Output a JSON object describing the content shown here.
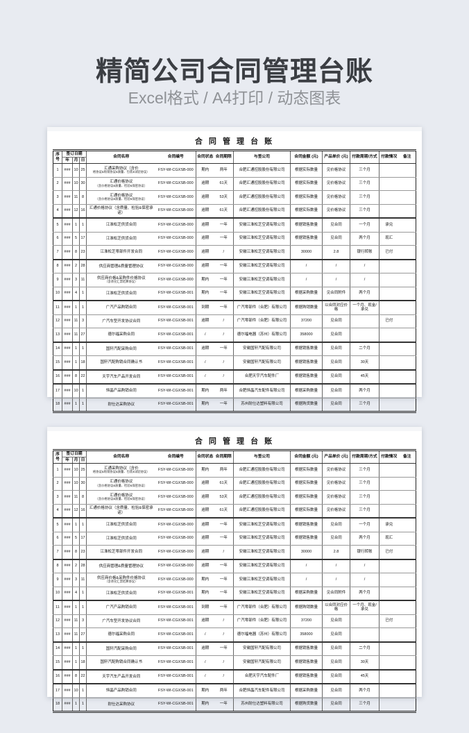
{
  "page": {
    "title": "精简公司合同管理台账",
    "subtitle": "Excel格式 / A4打印 / 动态图表"
  },
  "ledger": {
    "sheet_title": "合 同 管 理 台 账",
    "headers": {
      "no": "序号",
      "sign_date": "签订日期",
      "year": "年",
      "month": "月",
      "day": "日",
      "name": "合同名称",
      "number": "合同编号",
      "status": "合同状态",
      "period": "合同期限",
      "company": "与签公司",
      "amount": "合同金额 (元)",
      "price": "产品单价 (元)",
      "cycle": "付款周期/方式",
      "payment": "付款情况",
      "note": "备注"
    },
    "rows": [
      {
        "no": "1",
        "year": "###",
        "month": "10",
        "day": "25",
        "name": "汇通采购协议（含价",
        "name2": "格协议&购销协议&质量、包装&试验协议）",
        "number": "FSY-WI-CGXSB-000",
        "status": "期内",
        "period": "两年",
        "company": "合肥汇通控股股份有限公司",
        "amount": "根据实际数量",
        "price": "见价格协议",
        "cycle": "三个月",
        "payment": "",
        "note": "",
        "group_end": false
      },
      {
        "no": "2",
        "year": "###",
        "month": "10",
        "day": "30",
        "name": "汇通价格协议",
        "name2": "（含价格协议&质量、检验&保密协议）",
        "number": "FSY-WI-CGXSB-000",
        "status": "逾期",
        "period": "61天",
        "company": "合肥汇通控股股份有限公司",
        "amount": "根据实际数量",
        "price": "见价格协议",
        "cycle": "三个月",
        "payment": "",
        "note": "",
        "group_end": false
      },
      {
        "no": "3",
        "year": "###",
        "month": "11",
        "day": "8",
        "name": "汇通价格协议",
        "name2": "（含价格协议&质量、检验&保密协议）",
        "number": "FSY-WI-CGXSB-000",
        "status": "逾期",
        "period": "53天",
        "company": "合肥汇通控股股份有限公司",
        "amount": "根据实际数量",
        "price": "见价格协议",
        "cycle": "三个月",
        "payment": "",
        "note": "",
        "group_end": false
      },
      {
        "no": "4",
        "year": "###",
        "month": "12",
        "day": "16",
        "name": "汇通价格协议（含质量、检验&保密承诺）",
        "name2": "",
        "number": "FSY-WI-CGXSB-000",
        "status": "逾期",
        "period": "61天",
        "company": "合肥汇通控股股份有限公司",
        "amount": "根据实际数量",
        "price": "见价格协议",
        "cycle": "三个月",
        "payment": "",
        "note": "",
        "group_end": true
      },
      {
        "no": "5",
        "year": "###",
        "month": "1",
        "day": "1",
        "name": "江淮松芝供货合同",
        "name2": "",
        "number": "FSY-WI-CGXSB-000",
        "status": "逾期",
        "period": "一年",
        "company": "安徽江淮松芝空调有限公司",
        "amount": "根据销售数量",
        "price": "见合同",
        "cycle": "一个月",
        "payment": "承兑",
        "note": "",
        "group_end": false
      },
      {
        "no": "6",
        "year": "###",
        "month": "5",
        "day": "17",
        "name": "江淮松芝供货合同",
        "name2": "",
        "number": "FSY-WI-CGXSB-000",
        "status": "逾期",
        "period": "一年",
        "company": "安徽江淮松芝空调有限公司",
        "amount": "根据销售数量",
        "price": "见合同",
        "cycle": "两个月",
        "payment": "现汇",
        "note": "",
        "group_end": false
      },
      {
        "no": "7",
        "year": "###",
        "month": "8",
        "day": "23",
        "name": "江淮松芝零部件开发合同",
        "name2": "",
        "number": "FSY-WI-CGXSB-000",
        "status": "逾期",
        "period": "/",
        "company": "安徽江淮松芝空调有限公司",
        "amount": "30000",
        "price": "2.8",
        "cycle": "银行转账",
        "payment": "已付",
        "note": "",
        "group_end": true
      },
      {
        "no": "8",
        "year": "###",
        "month": "2",
        "day": "28",
        "name": "供应商管理&质量管理协议",
        "name2": "",
        "number": "FSY-WI-CGXSB-000",
        "status": "逾期",
        "period": "一年",
        "company": "安徽江淮松芝空调有限公司",
        "amount": "/",
        "price": "/",
        "cycle": "/",
        "payment": "",
        "note": "",
        "group_end": false
      },
      {
        "no": "9",
        "year": "###",
        "month": "3",
        "day": "11",
        "name": "供应商价格&采购件价格协议",
        "name2": "（含承兑汇票结算协议）",
        "number": "FSY-WI-CGXSB-000",
        "status": "期内",
        "period": "一年",
        "company": "安徽江淮松芝空调有限公司",
        "amount": "/",
        "price": "/",
        "cycle": "/",
        "payment": "",
        "note": "",
        "group_end": false
      },
      {
        "no": "10",
        "year": "###",
        "month": "4",
        "day": "1",
        "name": "江淮松芝供货合同",
        "name2": "",
        "number": "FSY-WI-CGXSB-001",
        "status": "期内",
        "period": "一年",
        "company": "安徽江淮松芝空调有限公司",
        "amount": "根据采购数量",
        "price": "见合同附件",
        "cycle": "两个月",
        "payment": "",
        "note": "",
        "group_end": true
      },
      {
        "no": "11",
        "year": "###",
        "month": "1",
        "day": "1",
        "name": "广汽产品购销合同",
        "name2": "",
        "number": "FSY-WI-CGXSB-001",
        "status": "到期",
        "period": "一年",
        "company": "广汽零部件（合肥）有限公司",
        "amount": "根据购销数量",
        "price": "以合同对应价格",
        "cycle": "一个月、现金/承兑",
        "payment": "",
        "note": "",
        "group_end": false
      },
      {
        "no": "12",
        "year": "###",
        "month": "11",
        "day": "3",
        "name": "广汽车型开发协议合同",
        "name2": "",
        "number": "FSY-WI-CGXSB-001",
        "status": "逾期",
        "period": "/",
        "company": "广汽零部件（合肥）有限公司",
        "amount": "37200",
        "price": "见合同",
        "cycle": "",
        "payment": "已付",
        "note": "",
        "group_end": false
      },
      {
        "no": "13",
        "year": "###",
        "month": "11",
        "day": "27",
        "name": "德尔福采购合同",
        "name2": "",
        "number": "FSY-WI-CGXSB-001",
        "status": "/",
        "period": "/",
        "company": "德尔福电器（苏州）有限公司",
        "amount": "358000",
        "price": "见合同",
        "cycle": "",
        "payment": "",
        "note": "",
        "group_end": true
      },
      {
        "no": "14",
        "year": "###",
        "month": "1",
        "day": "1",
        "name": "国轩汽配采购合同",
        "name2": "",
        "number": "FSY-WI-CGXSB-001",
        "status": "逾期",
        "period": "一年",
        "company": "安徽国轩汽配有限公司",
        "amount": "根据销售数量",
        "price": "见合同",
        "cycle": "二个月",
        "payment": "",
        "note": "",
        "group_end": false
      },
      {
        "no": "15",
        "year": "###",
        "month": "1",
        "day": "18",
        "name": "国轩汽配购销合同确认书",
        "name2": "",
        "number": "FSY-WI-CGXSB-001",
        "status": "/",
        "period": "/",
        "company": "安徽国轩汽配有限公司",
        "amount": "根据销售数量",
        "price": "见合同",
        "cycle": "30天",
        "payment": "",
        "note": "",
        "group_end": true
      },
      {
        "no": "16",
        "year": "###",
        "month": "8",
        "day": "22",
        "name": "天宇汽车产品开发合同",
        "name2": "",
        "number": "FSY-WI-CGXSB-001",
        "status": "/",
        "period": "/",
        "company": "合肥天宇汽车配件厂",
        "amount": "根据销售数量",
        "price": "见合同",
        "cycle": "45天",
        "payment": "",
        "note": "",
        "group_end": true
      },
      {
        "no": "17",
        "year": "###",
        "month": "10",
        "day": "1",
        "name": "恒晶产品购销合同",
        "name2": "",
        "number": "FSY-WI-CGXSB-001",
        "status": "期内",
        "period": "两年",
        "company": "合肥恒晶汽车配件有限公司",
        "amount": "根据采购数量",
        "price": "见合同",
        "cycle": "两个月",
        "payment": "",
        "note": "",
        "group_end": false
      },
      {
        "no": "18",
        "year": "###",
        "month": "1",
        "day": "1",
        "name": "耐仕达采购协议",
        "name2": "",
        "number": "FSY-WI-CGXSB-001",
        "status": "期内",
        "period": "一年",
        "company": "苏州耐仕达塑料有限公司",
        "amount": "根据购货数量",
        "price": "见合同",
        "cycle": "三个月",
        "payment": "",
        "note": "",
        "group_end": false
      }
    ]
  }
}
